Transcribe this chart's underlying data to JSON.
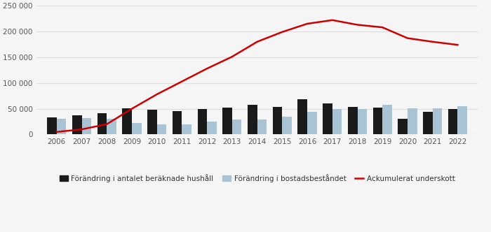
{
  "years": [
    2006,
    2007,
    2008,
    2009,
    2010,
    2011,
    2012,
    2013,
    2014,
    2015,
    2016,
    2017,
    2018,
    2019,
    2020,
    2021,
    2022
  ],
  "households": [
    33000,
    37000,
    41000,
    51000,
    48000,
    45000,
    50000,
    52000,
    58000,
    54000,
    68000,
    60000,
    53000,
    52000,
    30000,
    44000,
    49000
  ],
  "housing": [
    30000,
    32000,
    31000,
    22000,
    20000,
    20000,
    25000,
    29000,
    29000,
    35000,
    44000,
    50000,
    50000,
    57000,
    51000,
    51000,
    55000
  ],
  "deficit": [
    5000,
    10000,
    20000,
    50000,
    78000,
    103000,
    128000,
    151000,
    180000,
    199000,
    215000,
    222000,
    213000,
    208000,
    187000,
    180000,
    174000
  ],
  "bar_color_households": "#1a1a1a",
  "bar_color_housing": "#a8c4d4",
  "line_color": "#cc0000",
  "background_color": "#f5f5f5",
  "plot_bg_color": "#f5f5f5",
  "grid_color": "#dddddd",
  "ylim": [
    0,
    250000
  ],
  "yticks": [
    0,
    50000,
    100000,
    150000,
    200000,
    250000
  ],
  "ytick_labels": [
    "0",
    "50 000",
    "100 000",
    "150 000",
    "200 000",
    "250 000"
  ],
  "legend_labels": [
    "Förändring i antalet beräknade hushåll",
    "Förändring i bostadsbeståndet",
    "Ackumulerat underskott"
  ],
  "bar_width": 0.38
}
